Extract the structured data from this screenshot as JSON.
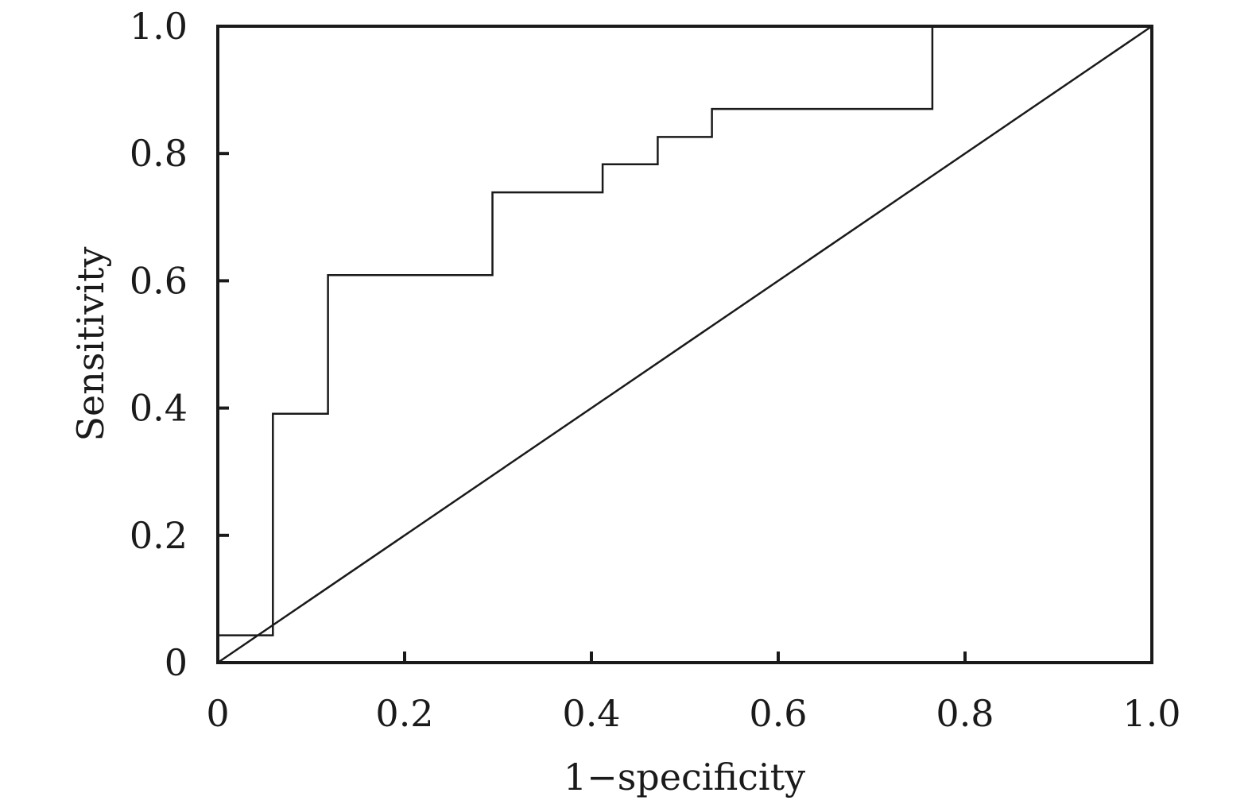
{
  "chart_data": {
    "type": "line",
    "title": "",
    "xlabel": "1−specificity",
    "ylabel": "Sensitivity",
    "xlim": [
      0,
      1.0
    ],
    "ylim": [
      0,
      1.0
    ],
    "x_ticks": [
      0,
      0.2,
      0.4,
      0.6,
      0.8,
      1.0
    ],
    "y_ticks": [
      0,
      0.2,
      0.4,
      0.6,
      0.8,
      1.0
    ],
    "x_tick_labels": [
      "0",
      "0.2",
      "0.4",
      "0.6",
      "0.8",
      "1.0"
    ],
    "y_tick_labels": [
      "0",
      "0.2",
      "0.4",
      "0.6",
      "0.8",
      "1.0"
    ],
    "grid": false,
    "legend": "none",
    "series": [
      {
        "style": "step",
        "x": [
          0,
          0.059,
          0.059,
          0.118,
          0.118,
          0.294,
          0.294,
          0.412,
          0.412,
          0.471,
          0.471,
          0.529,
          0.529,
          0.765,
          0.765
        ],
        "y": [
          0.043,
          0.043,
          0.391,
          0.391,
          0.609,
          0.609,
          0.739,
          0.739,
          0.783,
          0.783,
          0.826,
          0.826,
          0.87,
          0.87,
          1.0
        ]
      },
      {
        "style": "reference",
        "x": [
          0,
          1.0
        ],
        "y": [
          0,
          1.0
        ]
      }
    ],
    "colors": {
      "line": "#1a1a1a",
      "axis": "#1a1a1a"
    }
  }
}
